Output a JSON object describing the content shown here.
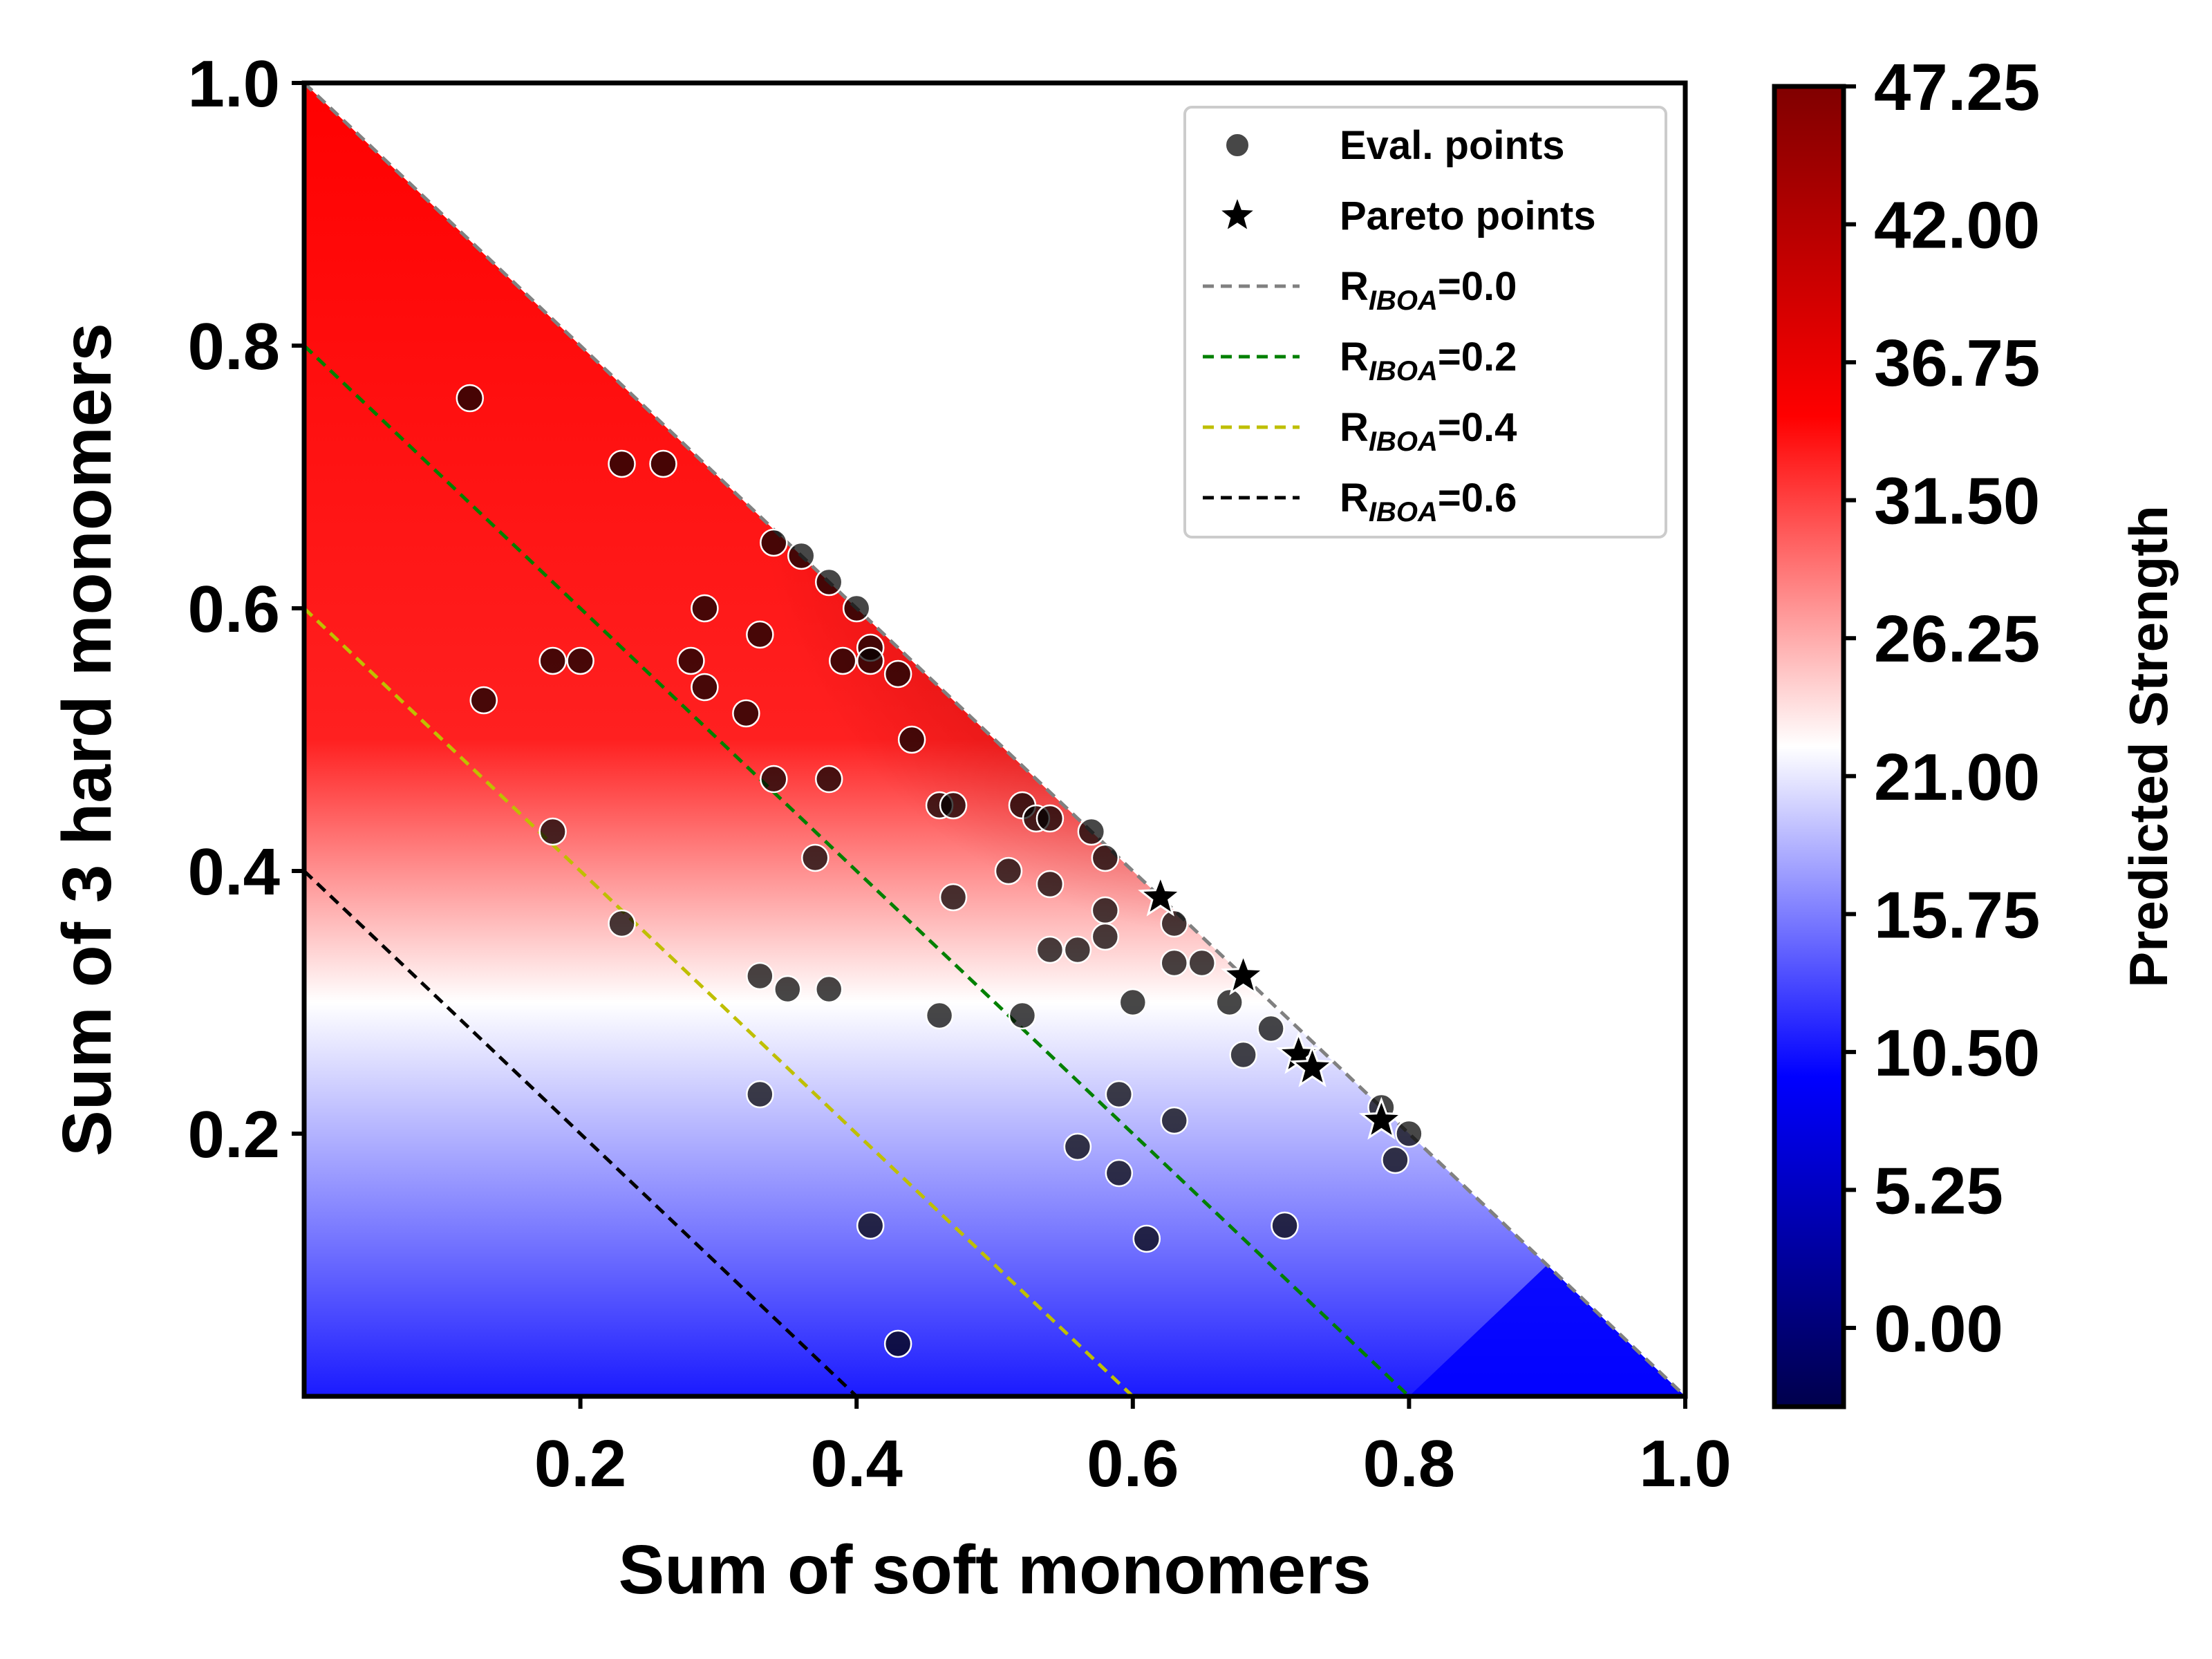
{
  "chart_data": {
    "type": "scatter",
    "xlabel": "Sum of soft monomers",
    "ylabel": "Sum of 3 hard monomers",
    "xlim": [
      0,
      1.0
    ],
    "ylim": [
      0,
      1.0
    ],
    "x_ticks": [
      0.2,
      0.4,
      0.6,
      0.8,
      1.0
    ],
    "y_ticks": [
      0.2,
      0.4,
      0.6,
      0.8,
      1.0
    ],
    "x_tick_labels": [
      "0.2",
      "0.4",
      "0.6",
      "0.8",
      "1.0"
    ],
    "y_tick_labels": [
      "0.2",
      "0.4",
      "0.6",
      "0.8",
      "1.0"
    ],
    "grid": false,
    "legend_position": "top-right",
    "colormap": {
      "name": "seismic",
      "label": "Predicted Strength",
      "range": [
        -3,
        47.25
      ],
      "ticks": [
        0.0,
        5.25,
        10.5,
        15.75,
        21.0,
        26.25,
        31.5,
        36.75,
        42.0,
        47.25
      ],
      "tick_labels": [
        "0.00",
        "5.25",
        "10.50",
        "15.75",
        "21.00",
        "26.25",
        "31.50",
        "36.75",
        "42.00",
        "47.25"
      ],
      "colors": [
        "#00004c",
        "#0000ff",
        "#ffffff",
        "#ff0000",
        "#800000"
      ]
    },
    "legend": [
      {
        "kind": "marker",
        "marker": "circle",
        "label": "Eval. points"
      },
      {
        "kind": "marker",
        "marker": "star",
        "label": "Pareto points"
      },
      {
        "kind": "line",
        "color": "#808080",
        "label_main": "R",
        "label_sub": "IBOA",
        "label_rest": "=0.0"
      },
      {
        "kind": "line",
        "color": "#008000",
        "label_main": "R",
        "label_sub": "IBOA",
        "label_rest": "=0.2"
      },
      {
        "kind": "line",
        "color": "#bfbf00",
        "label_main": "R",
        "label_sub": "IBOA",
        "label_rest": "=0.4"
      },
      {
        "kind": "line",
        "color": "#000000",
        "label_main": "R",
        "label_sub": "IBOA",
        "label_rest": "=0.6"
      }
    ],
    "constraint_lines": [
      {
        "r": 0.0,
        "color": "#808080"
      },
      {
        "r": 0.2,
        "color": "#008000"
      },
      {
        "r": 0.4,
        "color": "#bfbf00"
      },
      {
        "r": 0.6,
        "color": "#000000"
      }
    ],
    "series": [
      {
        "name": "Eval. points",
        "marker": "circle",
        "x": [
          0.12,
          0.23,
          0.26,
          0.34,
          0.36,
          0.38,
          0.4,
          0.41,
          0.29,
          0.18,
          0.2,
          0.28,
          0.33,
          0.39,
          0.41,
          0.43,
          0.13,
          0.29,
          0.32,
          0.44,
          0.34,
          0.38,
          0.46,
          0.47,
          0.52,
          0.53,
          0.54,
          0.57,
          0.18,
          0.37,
          0.58,
          0.51,
          0.54,
          0.47,
          0.58,
          0.23,
          0.63,
          0.58,
          0.54,
          0.56,
          0.63,
          0.65,
          0.33,
          0.35,
          0.38,
          0.67,
          0.46,
          0.52,
          0.6,
          0.7,
          0.68,
          0.33,
          0.59,
          0.63,
          0.78,
          0.8,
          0.56,
          0.79,
          0.59,
          0.41,
          0.71,
          0.61,
          0.43
        ],
        "y": [
          0.76,
          0.71,
          0.71,
          0.65,
          0.64,
          0.62,
          0.6,
          0.57,
          0.6,
          0.56,
          0.56,
          0.56,
          0.58,
          0.56,
          0.56,
          0.55,
          0.53,
          0.54,
          0.52,
          0.5,
          0.47,
          0.47,
          0.45,
          0.45,
          0.45,
          0.44,
          0.44,
          0.43,
          0.43,
          0.41,
          0.41,
          0.4,
          0.39,
          0.38,
          0.37,
          0.36,
          0.36,
          0.35,
          0.34,
          0.34,
          0.33,
          0.33,
          0.32,
          0.31,
          0.31,
          0.3,
          0.29,
          0.29,
          0.3,
          0.28,
          0.26,
          0.23,
          0.23,
          0.21,
          0.22,
          0.2,
          0.19,
          0.18,
          0.17,
          0.13,
          0.13,
          0.12,
          0.04
        ]
      },
      {
        "name": "Pareto points",
        "marker": "star",
        "x": [
          0.62,
          0.68,
          0.72,
          0.73,
          0.78
        ],
        "y": [
          0.38,
          0.32,
          0.26,
          0.25,
          0.21
        ]
      }
    ]
  }
}
